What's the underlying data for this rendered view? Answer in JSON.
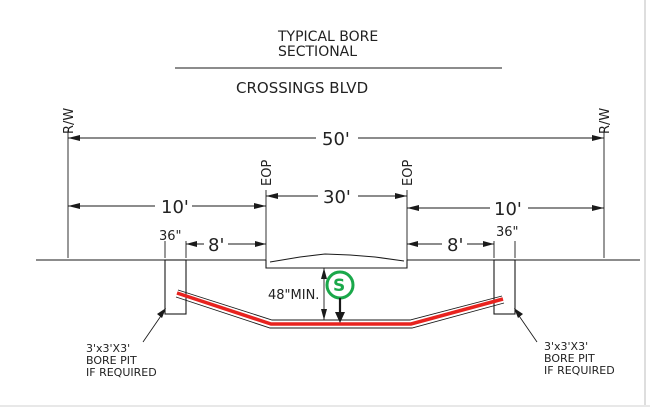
{
  "title": {
    "line1": "TYPICAL BORE",
    "line2": "SECTIONAL",
    "street": "CROSSINGS BLVD"
  },
  "labels": {
    "rw_left": "R/W",
    "rw_right": "R/W",
    "eop_left": "EOP",
    "eop_right": "EOP"
  },
  "dimensions": {
    "total_width": "50'",
    "left_offset": "10'",
    "right_offset": "10'",
    "road_width": "30'",
    "left_sidewalk": "8'",
    "right_sidewalk": "8'",
    "left_pit": "36\"",
    "right_pit": "36\"",
    "min_depth": "48\"MIN."
  },
  "symbol": {
    "letter": "S"
  },
  "notes": {
    "left": [
      "3'x3'X3'",
      "BORE PIT",
      "IF REQUIRED"
    ],
    "right": [
      "3'x3'X3'",
      "BORE PIT",
      "IF REQUIRED"
    ]
  },
  "colors": {
    "bore_line": "#e8231f",
    "symbol": "#1aa84a",
    "ink": "#1a1a1a"
  }
}
